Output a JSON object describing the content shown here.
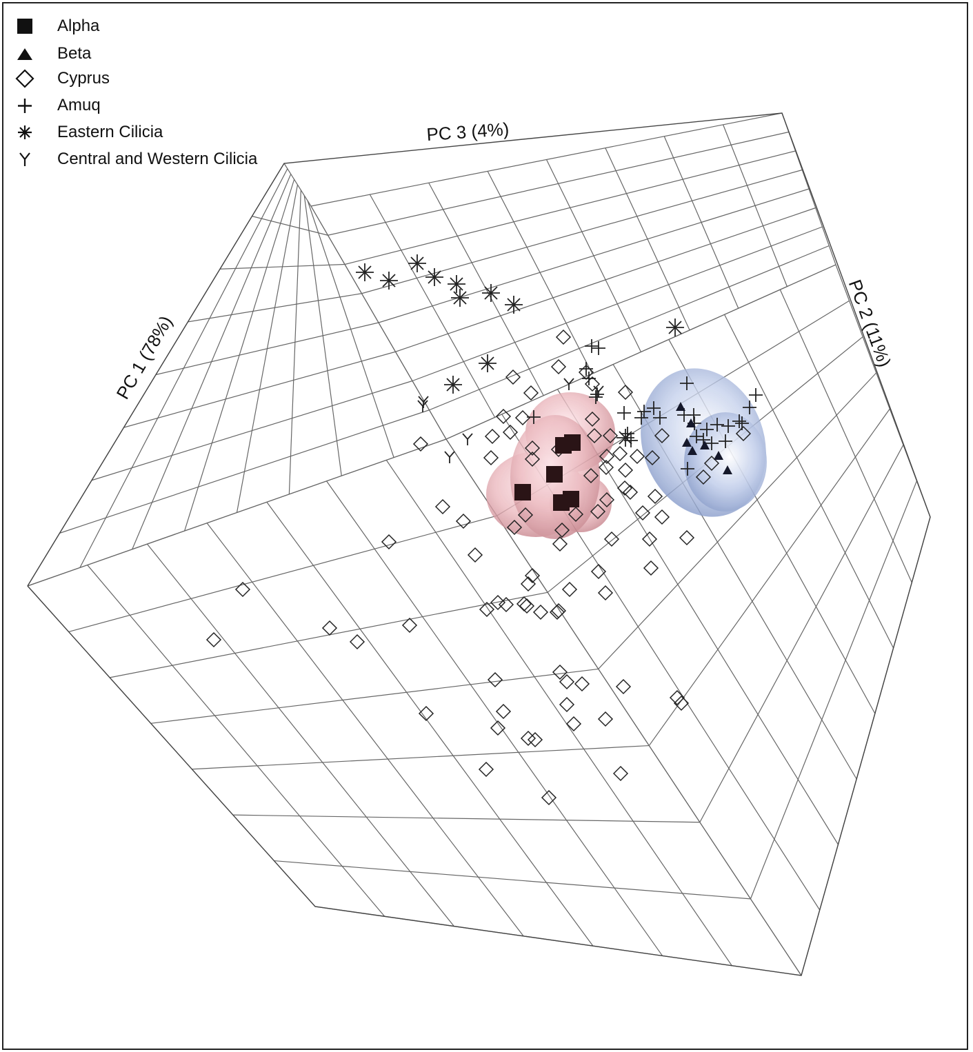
{
  "chart_data": {
    "type": "scatter",
    "projection": "3d",
    "axes": {
      "pc1": "PC 1 (78%)",
      "pc2": "PC 2 (11%)",
      "pc3": "PC 3 (4%)"
    },
    "grid": true,
    "legend_position": "top-left",
    "ellipsoids": [
      {
        "series": "Alpha",
        "color": "#d98a92"
      },
      {
        "series": "Beta",
        "color": "#8fa5d6"
      }
    ],
    "series": [
      {
        "name": "Alpha",
        "marker": "square-filled",
        "color": "#2a1416",
        "count": 5
      },
      {
        "name": "Beta",
        "marker": "triangle-filled",
        "color": "#15182a",
        "count": 7
      },
      {
        "name": "Cyprus",
        "marker": "diamond-open",
        "color": "#222222",
        "count": 103
      },
      {
        "name": "Amuq",
        "marker": "plus",
        "color": "#222222",
        "count": 34
      },
      {
        "name": "Eastern Cilicia",
        "marker": "asterisk",
        "color": "#222222",
        "count": 12
      },
      {
        "name": "Central and Western Cilicia",
        "marker": "tri-y",
        "color": "#222222",
        "count": 6
      }
    ]
  }
}
